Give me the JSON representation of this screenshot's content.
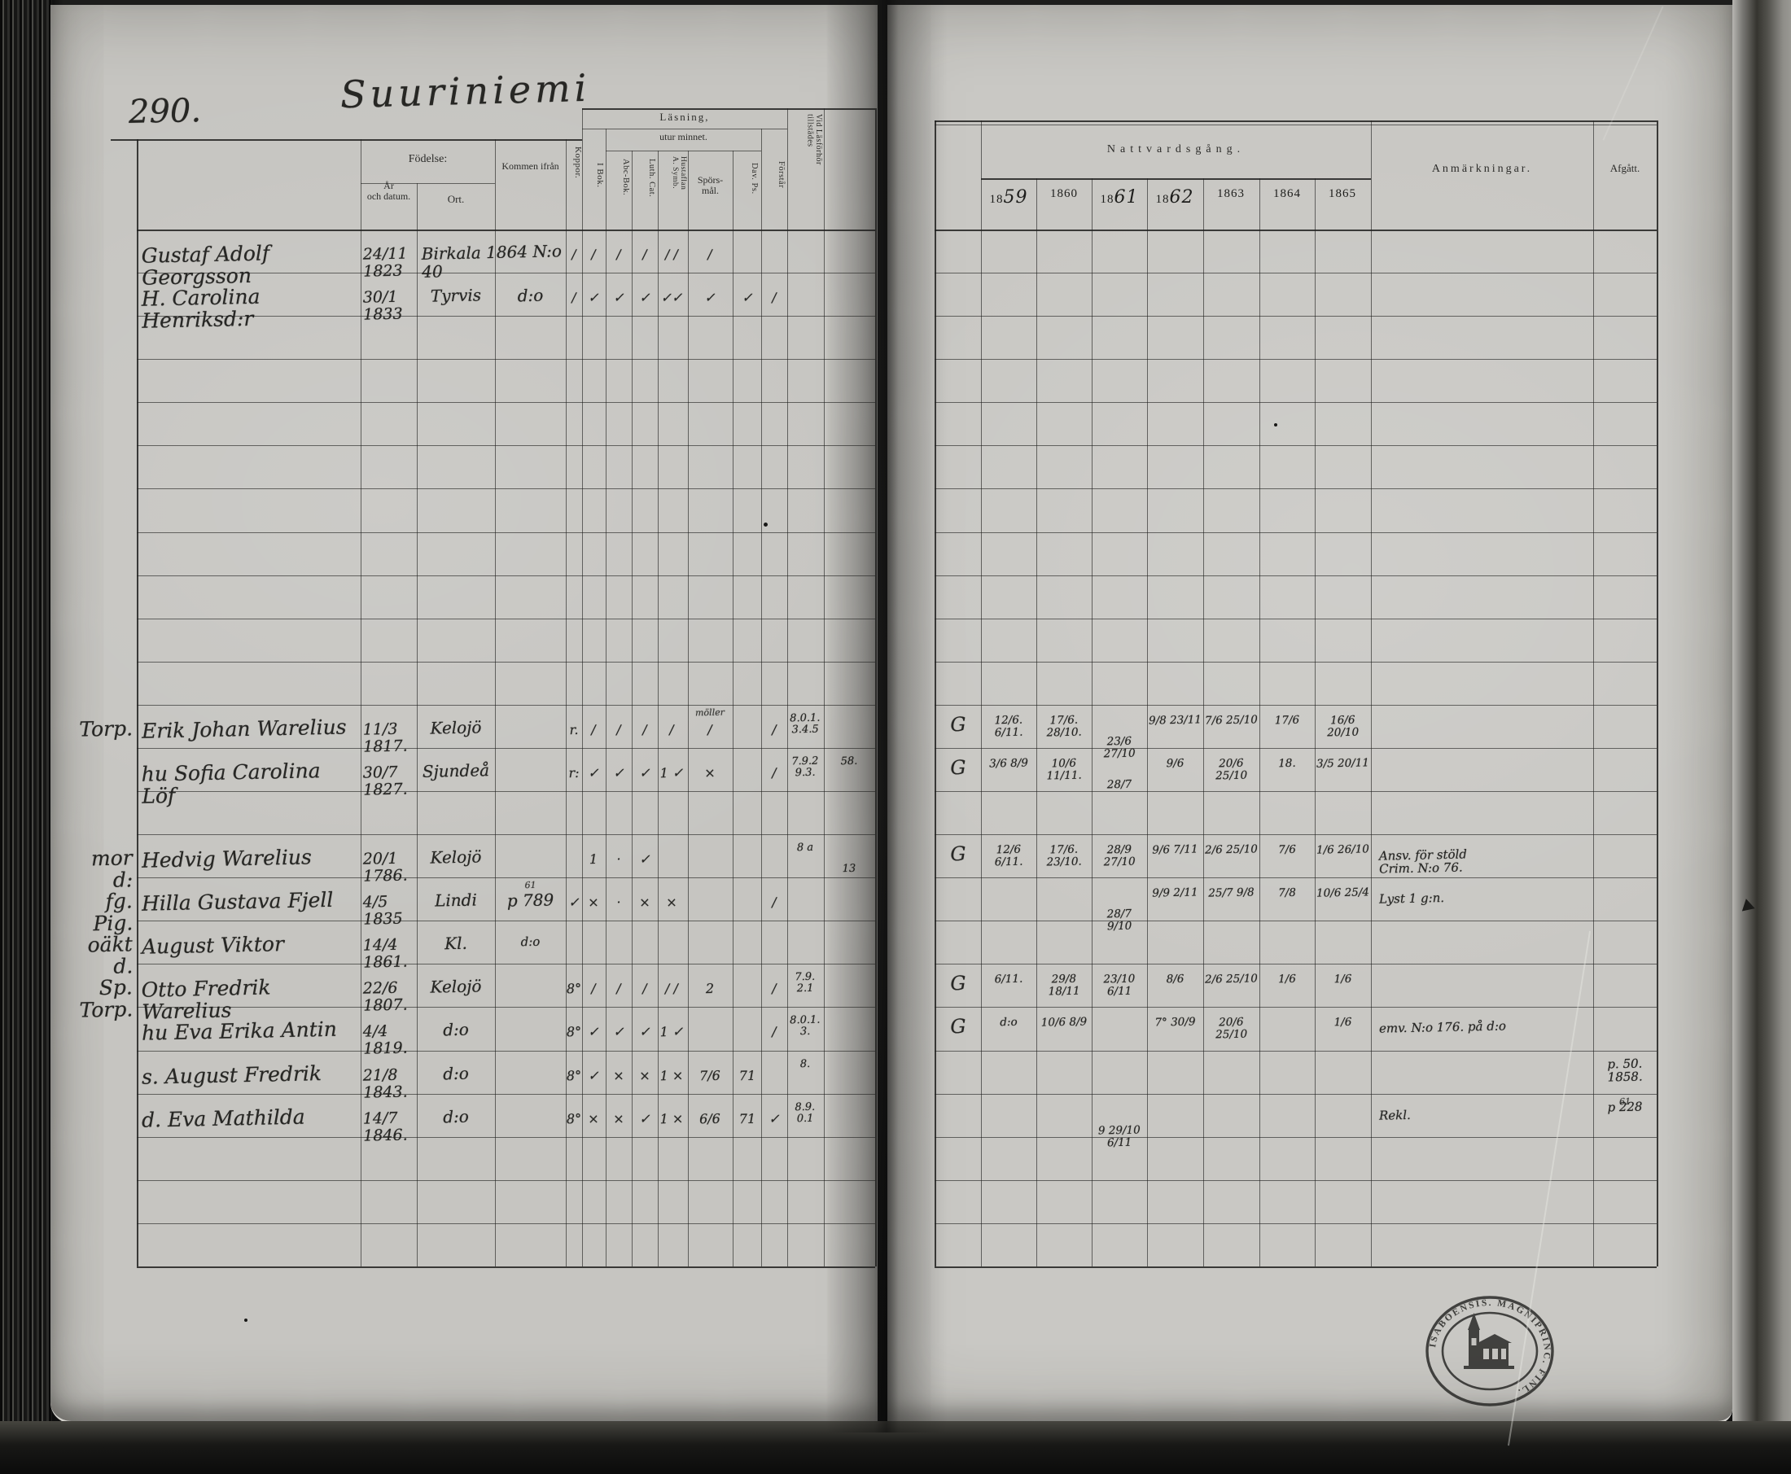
{
  "page": {
    "number": "290.",
    "title": "Suuriniemi"
  },
  "left_table": {
    "fodelse": "Födelse:",
    "ar_och_datum": "År\noch datum.",
    "ort": "Ort.",
    "kommen_ifran": "Kommen ifrån",
    "koppor": "Koppor.",
    "lasning": "Läsning,",
    "utur_minnet": "utur minnet.",
    "i_bok": "I Bok.",
    "abc_bok": "Abc-Bok.",
    "luth_cat": "Luth. Cat.",
    "hustaflan": "Hustaflan\nA. Symb.",
    "sporsmal": "Spörs-\nmål.",
    "dav_ps": "Dav. Ps.",
    "forstar": "Förstår",
    "vid_lasforhor": "Vid Läsförhör\ntillstädes"
  },
  "right_table": {
    "nattvardsgang": "Nattvardsgång.",
    "years": [
      "1859",
      "1860",
      "1861",
      "1862",
      "1863",
      "1864",
      "1865"
    ],
    "anmarkningar": "Anmärkningar.",
    "afgatt": "Afgått."
  },
  "stamp": {
    "arc_text": "DIOECESISABOENSIS. MAGNIPRINC. FINL."
  },
  "margin_notes": [
    {
      "row": 11,
      "text": "Torp."
    },
    {
      "row": 14,
      "text": "mor d:"
    },
    {
      "row": 15,
      "text": "fg. Pig."
    },
    {
      "row": 16,
      "text": "oäkt d."
    },
    {
      "row": 17,
      "text": "Sp. Torp."
    }
  ],
  "left_entries": [
    {
      "row": 0,
      "col": "name",
      "text": "Gustaf Adolf Georgsson"
    },
    {
      "row": 0,
      "col": "date",
      "text": "24/11 1823"
    },
    {
      "row": 0,
      "col": "ort_kommen",
      "text": "Birkala 1864 N:o 40"
    },
    {
      "row": 0,
      "col": "koppor",
      "text": "/"
    },
    {
      "row": 0,
      "col": "ibok",
      "text": "/"
    },
    {
      "row": 0,
      "col": "abc",
      "text": "/"
    },
    {
      "row": 0,
      "col": "luth",
      "text": "/"
    },
    {
      "row": 0,
      "col": "hust",
      "text": "/ /"
    },
    {
      "row": 0,
      "col": "spors",
      "text": "/"
    },
    {
      "row": 1,
      "col": "name",
      "text": "H. Carolina Henriksd:r"
    },
    {
      "row": 1,
      "col": "date",
      "text": "30/1 1833"
    },
    {
      "row": 1,
      "col": "ort",
      "text": "Tyrvis"
    },
    {
      "row": 1,
      "col": "kommen",
      "text": "d:o"
    },
    {
      "row": 1,
      "col": "koppor",
      "text": "/"
    },
    {
      "row": 1,
      "col": "ibok",
      "text": "✓"
    },
    {
      "row": 1,
      "col": "abc",
      "text": "✓"
    },
    {
      "row": 1,
      "col": "luth",
      "text": "✓"
    },
    {
      "row": 1,
      "col": "hust",
      "text": "✓✓"
    },
    {
      "row": 1,
      "col": "spors",
      "text": "✓"
    },
    {
      "row": 1,
      "col": "dav",
      "text": "✓"
    },
    {
      "row": 1,
      "col": "forstar",
      "text": "/"
    },
    {
      "row": 11,
      "col": "name",
      "text": "Erik Johan Warelius"
    },
    {
      "row": 11,
      "col": "date",
      "text": "11/3 1817."
    },
    {
      "row": 11,
      "col": "ort",
      "text": "Kelojö"
    },
    {
      "row": 11,
      "col": "koppor",
      "text": "r."
    },
    {
      "row": 11,
      "col": "ibok",
      "text": "/"
    },
    {
      "row": 11,
      "col": "abc",
      "text": "/"
    },
    {
      "row": 11,
      "col": "luth",
      "text": "/"
    },
    {
      "row": 11,
      "col": "hust",
      "text": "/"
    },
    {
      "row": 11,
      "col": "spors",
      "text": "möller",
      "cls": "sup"
    },
    {
      "row": 11,
      "col": "spors",
      "text": "/"
    },
    {
      "row": 11,
      "col": "forstar",
      "text": "/"
    },
    {
      "row": 11,
      "col": "vid",
      "text": "8.0.1.\n3.4.5"
    },
    {
      "row": 12,
      "col": "name",
      "text": "hu Sofia Carolina Löf"
    },
    {
      "row": 12,
      "col": "date",
      "text": "30/7 1827."
    },
    {
      "row": 12,
      "col": "ort",
      "text": "Sjundeå"
    },
    {
      "row": 12,
      "col": "koppor",
      "text": "r:"
    },
    {
      "row": 12,
      "col": "ibok",
      "text": "✓"
    },
    {
      "row": 12,
      "col": "abc",
      "text": "✓"
    },
    {
      "row": 12,
      "col": "luth",
      "text": "✓"
    },
    {
      "row": 12,
      "col": "hust",
      "text": "1 ✓"
    },
    {
      "row": 12,
      "col": "spors",
      "text": "×"
    },
    {
      "row": 12,
      "col": "forstar",
      "text": "/"
    },
    {
      "row": 12,
      "col": "vid",
      "text": "7.9.2\n9.3."
    },
    {
      "row": 12,
      "col": "last",
      "text": "58."
    },
    {
      "row": 14,
      "col": "name",
      "text": "Hedvig Warelius"
    },
    {
      "row": 14,
      "col": "date",
      "text": "20/1 1786."
    },
    {
      "row": 14,
      "col": "ort",
      "text": "Kelojö"
    },
    {
      "row": 14,
      "col": "ibok",
      "text": "1"
    },
    {
      "row": 14,
      "col": "abc",
      "text": "·"
    },
    {
      "row": 14,
      "col": "luth",
      "text": "✓"
    },
    {
      "row": 14,
      "col": "vid",
      "text": "8 a"
    },
    {
      "row": 14,
      "col": "last",
      "text": "13",
      "cls": "low"
    },
    {
      "row": 15,
      "col": "name",
      "text": "Hilla Gustava Fjell"
    },
    {
      "row": 15,
      "col": "date",
      "text": "4/5 1835"
    },
    {
      "row": 15,
      "col": "ort",
      "text": "Lindi"
    },
    {
      "row": 15,
      "col": "kommen",
      "text": "p 789"
    },
    {
      "row": 15,
      "col": "kommen",
      "text": "61",
      "cls": "sup"
    },
    {
      "row": 15,
      "col": "koppor",
      "text": "✓"
    },
    {
      "row": 15,
      "col": "ibok",
      "text": "×"
    },
    {
      "row": 15,
      "col": "abc",
      "text": "·"
    },
    {
      "row": 15,
      "col": "luth",
      "text": "×"
    },
    {
      "row": 15,
      "col": "hust",
      "text": "×"
    },
    {
      "row": 15,
      "col": "forstar",
      "text": "/"
    },
    {
      "row": 16,
      "col": "name",
      "text": "August Viktor"
    },
    {
      "row": 16,
      "col": "date",
      "text": "14/4 1861."
    },
    {
      "row": 16,
      "col": "ort",
      "text": "Kl."
    },
    {
      "row": 16,
      "col": "kommen",
      "text": "d:o",
      "cls": "sm"
    },
    {
      "row": 17,
      "col": "name",
      "text": "Otto Fredrik Warelius"
    },
    {
      "row": 17,
      "col": "date",
      "text": "22/6 1807."
    },
    {
      "row": 17,
      "col": "ort",
      "text": "Kelojö"
    },
    {
      "row": 17,
      "col": "koppor",
      "text": "8°"
    },
    {
      "row": 17,
      "col": "ibok",
      "text": "/"
    },
    {
      "row": 17,
      "col": "abc",
      "text": "/"
    },
    {
      "row": 17,
      "col": "luth",
      "text": "/"
    },
    {
      "row": 17,
      "col": "hust",
      "text": "/ /"
    },
    {
      "row": 17,
      "col": "spors",
      "text": "2"
    },
    {
      "row": 17,
      "col": "forstar",
      "text": "/"
    },
    {
      "row": 17,
      "col": "vid",
      "text": "7.9.\n2.1"
    },
    {
      "row": 18,
      "col": "name",
      "text": "hu Eva Erika Antin"
    },
    {
      "row": 18,
      "col": "date",
      "text": "4/4 1819."
    },
    {
      "row": 18,
      "col": "ort",
      "text": "d:o"
    },
    {
      "row": 18,
      "col": "koppor",
      "text": "8°"
    },
    {
      "row": 18,
      "col": "ibok",
      "text": "✓"
    },
    {
      "row": 18,
      "col": "abc",
      "text": "✓"
    },
    {
      "row": 18,
      "col": "luth",
      "text": "✓"
    },
    {
      "row": 18,
      "col": "hust",
      "text": "1 ✓"
    },
    {
      "row": 18,
      "col": "forstar",
      "text": "/"
    },
    {
      "row": 18,
      "col": "vid",
      "text": "8.0.1.\n3."
    },
    {
      "row": 19,
      "col": "name",
      "text": "s. August Fredrik"
    },
    {
      "row": 19,
      "col": "date",
      "text": "21/8 1843."
    },
    {
      "row": 19,
      "col": "ort",
      "text": "d:o"
    },
    {
      "row": 19,
      "col": "koppor",
      "text": "8°"
    },
    {
      "row": 19,
      "col": "ibok",
      "text": "✓"
    },
    {
      "row": 19,
      "col": "abc",
      "text": "×"
    },
    {
      "row": 19,
      "col": "luth",
      "text": "×"
    },
    {
      "row": 19,
      "col": "hust",
      "text": "1 ×"
    },
    {
      "row": 19,
      "col": "spors",
      "text": "7/6"
    },
    {
      "row": 19,
      "col": "dav",
      "text": "71"
    },
    {
      "row": 19,
      "col": "vid",
      "text": "8."
    },
    {
      "row": 20,
      "col": "name",
      "text": "d. Eva Mathilda"
    },
    {
      "row": 20,
      "col": "date",
      "text": "14/7 1846."
    },
    {
      "row": 20,
      "col": "ort",
      "text": "d:o"
    },
    {
      "row": 20,
      "col": "koppor",
      "text": "8°"
    },
    {
      "row": 20,
      "col": "ibok",
      "text": "×"
    },
    {
      "row": 20,
      "col": "abc",
      "text": "×"
    },
    {
      "row": 20,
      "col": "luth",
      "text": "✓"
    },
    {
      "row": 20,
      "col": "hust",
      "text": "1 ×"
    },
    {
      "row": 20,
      "col": "spors",
      "text": "6/6"
    },
    {
      "row": 20,
      "col": "dav",
      "text": "71"
    },
    {
      "row": 20,
      "col": "forstar",
      "text": "✓"
    },
    {
      "row": 20,
      "col": "vid",
      "text": "8.9.\n0.1"
    }
  ],
  "right_entries": [
    {
      "row": 11,
      "col": "sym",
      "text": "G"
    },
    {
      "row": 11,
      "col": "y1859",
      "text": "12/6. 6/11."
    },
    {
      "row": 11,
      "col": "y1860",
      "text": "17/6. 28/10."
    },
    {
      "row": 11,
      "col": "y1861",
      "text": "23/6 27/10",
      "cls": "low"
    },
    {
      "row": 11,
      "col": "y1862",
      "text": "9/8 23/11"
    },
    {
      "row": 11,
      "col": "y1863",
      "text": "7/6 25/10"
    },
    {
      "row": 11,
      "col": "y1864",
      "text": "17/6"
    },
    {
      "row": 11,
      "col": "y1865",
      "text": "16/6 20/10"
    },
    {
      "row": 12,
      "col": "sym",
      "text": "G"
    },
    {
      "row": 12,
      "col": "y1859",
      "text": "3/6 8/9"
    },
    {
      "row": 12,
      "col": "y1860",
      "text": "10/6 11/11."
    },
    {
      "row": 12,
      "col": "y1861",
      "text": "28/7",
      "cls": "low"
    },
    {
      "row": 12,
      "col": "y1862",
      "text": "9/6"
    },
    {
      "row": 12,
      "col": "y1863",
      "text": "20/6 25/10"
    },
    {
      "row": 12,
      "col": "y1864",
      "text": "18."
    },
    {
      "row": 12,
      "col": "y1865",
      "text": "3/5 20/11"
    },
    {
      "row": 14,
      "col": "sym",
      "text": "G"
    },
    {
      "row": 14,
      "col": "y1859",
      "text": "12/6 6/11."
    },
    {
      "row": 14,
      "col": "y1860",
      "text": "17/6. 23/10."
    },
    {
      "row": 14,
      "col": "y1861",
      "text": "28/9 27/10"
    },
    {
      "row": 14,
      "col": "y1862",
      "text": "9/6 7/11"
    },
    {
      "row": 14,
      "col": "y1863",
      "text": "2/6 25/10"
    },
    {
      "row": 14,
      "col": "y1864",
      "text": "7/6"
    },
    {
      "row": 14,
      "col": "y1865",
      "text": "1/6 26/10"
    },
    {
      "row": 14,
      "col": "anm",
      "text": "Ansv. för stöld\nCrim. N:o 76."
    },
    {
      "row": 15,
      "col": "y1861",
      "text": "28/7 9/10",
      "cls": "low"
    },
    {
      "row": 15,
      "col": "y1862",
      "text": "9/9 2/11"
    },
    {
      "row": 15,
      "col": "y1863",
      "text": "25/7 9/8"
    },
    {
      "row": 15,
      "col": "y1864",
      "text": "7/8"
    },
    {
      "row": 15,
      "col": "y1865",
      "text": "10/6 25/4"
    },
    {
      "row": 15,
      "col": "anm",
      "text": "Lyst 1 g:n."
    },
    {
      "row": 17,
      "col": "sym",
      "text": "G"
    },
    {
      "row": 17,
      "col": "y1859",
      "text": "6/11."
    },
    {
      "row": 17,
      "col": "y1860",
      "text": "29/8 18/11"
    },
    {
      "row": 17,
      "col": "y1861",
      "text": "23/10 6/11"
    },
    {
      "row": 17,
      "col": "y1862",
      "text": "8/6"
    },
    {
      "row": 17,
      "col": "y1863",
      "text": "2/6 25/10"
    },
    {
      "row": 17,
      "col": "y1864",
      "text": "1/6"
    },
    {
      "row": 17,
      "col": "y1865",
      "text": "1/6"
    },
    {
      "row": 18,
      "col": "sym",
      "text": "G"
    },
    {
      "row": 18,
      "col": "y1859",
      "text": "d:o"
    },
    {
      "row": 18,
      "col": "y1860",
      "text": "10/6 8/9"
    },
    {
      "row": 18,
      "col": "y1862",
      "text": "7° 30/9"
    },
    {
      "row": 18,
      "col": "y1863",
      "text": "20/6 25/10"
    },
    {
      "row": 18,
      "col": "y1865",
      "text": "1/6"
    },
    {
      "row": 18,
      "col": "anm",
      "text": "emv. N:o 176. på d:o"
    },
    {
      "row": 19,
      "col": "afg",
      "text": "p. 50.\n1858."
    },
    {
      "row": 20,
      "col": "y1861",
      "text": "9 29/10\n6/11",
      "cls": "low"
    },
    {
      "row": 20,
      "col": "anm",
      "text": "Rekl."
    },
    {
      "row": 20,
      "col": "afg",
      "text": "p 228"
    },
    {
      "row": 20,
      "col": "afg",
      "text": "61",
      "cls": "sup"
    }
  ]
}
